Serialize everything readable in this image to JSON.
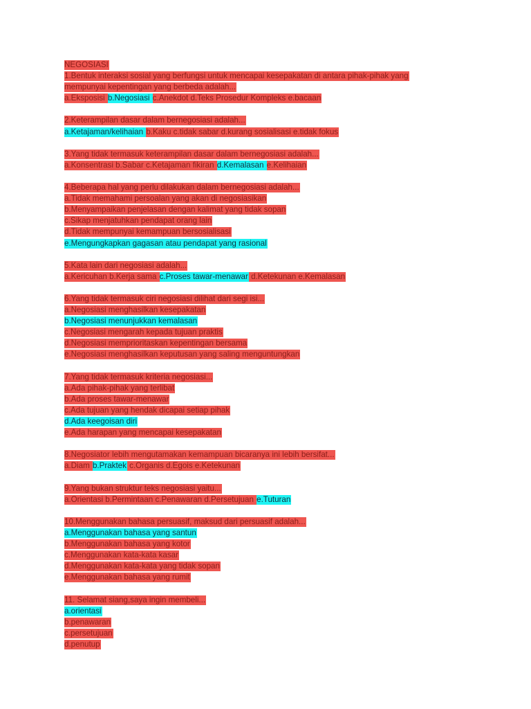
{
  "title": "NEGOSIASI",
  "colors": {
    "red": "#ef5650",
    "cyan": "#1ff3f3"
  },
  "questions": [
    {
      "q": [
        "1.Bentuk interaksi sosial yang berfungsi untuk mencapai kesepakatan di antara pihak-pihak yang",
        "mempunyai kepentingan yang berbeda adalah..."
      ],
      "a": [
        [
          {
            "t": "a.Eksposisi ",
            "h": "red"
          },
          {
            "t": "b.Negosiasi ",
            "h": "cyan"
          },
          {
            "t": "c.Anekdot d.Teks Prosedur Kompleks e.bacaan",
            "h": "red"
          }
        ]
      ]
    },
    {
      "q": [
        "2.Keterampilan dasar dalam bernegosiasi adalah..."
      ],
      "a": [
        [
          {
            "t": "a.Ketajaman/kelihaian ",
            "h": "cyan"
          },
          {
            "t": "b.Kaku c.tidak sabar d.kurang sosialisasi e.tidak fokus",
            "h": "red"
          }
        ]
      ]
    },
    {
      "q": [
        "3.Yang tidak termasuk keterampilan dasar dalam bernegosiasi adalah..."
      ],
      "a": [
        [
          {
            "t": "a.Konsentrasi b.Sabar c.Ketajaman fikiran ",
            "h": "red"
          },
          {
            "t": "d.Kemalasan ",
            "h": "cyan"
          },
          {
            "t": "e.Kelihaian",
            "h": "red"
          }
        ]
      ]
    },
    {
      "q": [
        "4.Beberapa hal yang perlu dilakukan dalam bernegosiasi adalah..."
      ],
      "a": [
        [
          {
            "t": "a.Tidak memahami persoalan yang akan di negosiasikan",
            "h": "red"
          }
        ],
        [
          {
            "t": "b.Menyampaikan penjelasan dengan kalimat yang tidak sopan",
            "h": "red"
          }
        ],
        [
          {
            "t": "c.Sikap menjatuhkan pendapat orang lain",
            "h": "red"
          }
        ],
        [
          {
            "t": "d.Tidak mempunyai kemampuan bersosialisasi",
            "h": "red"
          }
        ],
        [
          {
            "t": "e.Mengungkapkan gagasan atau pendapat yang rasional",
            "h": "cyan"
          }
        ]
      ]
    },
    {
      "q": [
        "5.Kata lain dari negosiasi adalah..."
      ],
      "a": [
        [
          {
            "t": "a.Kericuhan b.Kerja sama ",
            "h": "red"
          },
          {
            "t": "c.Proses tawar-menawar",
            "h": "cyan"
          },
          {
            "t": " d.Ketekunan e.Kemalasan",
            "h": "red"
          }
        ]
      ]
    },
    {
      "q": [
        "6.Yang tidak termasuk ciri negosiasi dilihat dari segi isi..."
      ],
      "a": [
        [
          {
            "t": "a.Negosiasi menghasilkan kesepakatan",
            "h": "red"
          }
        ],
        [
          {
            "t": "b.Negosiasi menunjukkan kemalasan",
            "h": "cyan"
          }
        ],
        [
          {
            "t": "c.Negosiasi mengarah kepada tujuan praktis",
            "h": "red"
          }
        ],
        [
          {
            "t": "d.Negosiasi memprioritaskan kepentingan bersama",
            "h": "red"
          }
        ],
        [
          {
            "t": "e.Negosiasi menghasilkan keputusan yang saling menguntungkan",
            "h": "red"
          }
        ]
      ]
    },
    {
      "q": [
        "7.Yang tidak termasuk kriteria negosiasi..."
      ],
      "a": [
        [
          {
            "t": "a.Ada pihak-pihak yang terlibat",
            "h": "red"
          }
        ],
        [
          {
            "t": "b.Ada proses tawar-menawar",
            "h": "red"
          }
        ],
        [
          {
            "t": "c.Ada tujuan yang hendak dicapai setiap pihak",
            "h": "red"
          }
        ],
        [
          {
            "t": " d.Ada keegoisan diri",
            "h": "cyan"
          }
        ],
        [
          {
            "t": "e.Ada harapan yang mencapai kesepakatan",
            "h": "red"
          }
        ]
      ]
    },
    {
      "q": [
        "8.Negosiator lebih mengutamakan kemampuan bicaranya ini lebih bersifat..."
      ],
      "a": [
        [
          {
            "t": "a.Diam ",
            "h": "red"
          },
          {
            "t": "b.Praktek",
            "h": "cyan"
          },
          {
            "t": " c.Organis d.Egois e.Ketekunan",
            "h": "red"
          }
        ]
      ]
    },
    {
      "q": [
        "9.Yang bukan struktur teks negosiasi yaitu..."
      ],
      "a": [
        [
          {
            "t": "a.Orientasi b.Permintaan c.Penawaran d.Persetujuan ",
            "h": "red"
          },
          {
            "t": "e.Tuturan",
            "h": "cyan"
          }
        ]
      ]
    },
    {
      "q": [
        "10.Menggunakan bahasa persuasif, maksud dari persuasif adalah..."
      ],
      "a": [
        [
          {
            "t": "a.Menggunakan bahasa yang santun",
            "h": "cyan"
          }
        ],
        [
          {
            "t": "b.Menggunakan bahasa yang kotor",
            "h": "red"
          }
        ],
        [
          {
            "t": "c.Menggunakan kata-kata kasar",
            "h": "red"
          }
        ],
        [
          {
            "t": "d.Menggunakan kata-kata yang tidak sopan",
            "h": "red"
          }
        ],
        [
          {
            "t": "e.Menggunakan bahasa yang rumit",
            "h": "red"
          }
        ]
      ]
    },
    {
      "q": [
        "11. Selamat siang,saya ingin membeli..."
      ],
      "a": [
        [
          {
            "t": "a.orientasi",
            "h": "cyan"
          }
        ],
        [
          {
            "t": "b.penawaran",
            "h": "red"
          }
        ],
        [
          {
            "t": "c.persetujuan",
            "h": "red"
          }
        ],
        [
          {
            "t": "d.penutup",
            "h": "red"
          }
        ]
      ]
    }
  ]
}
